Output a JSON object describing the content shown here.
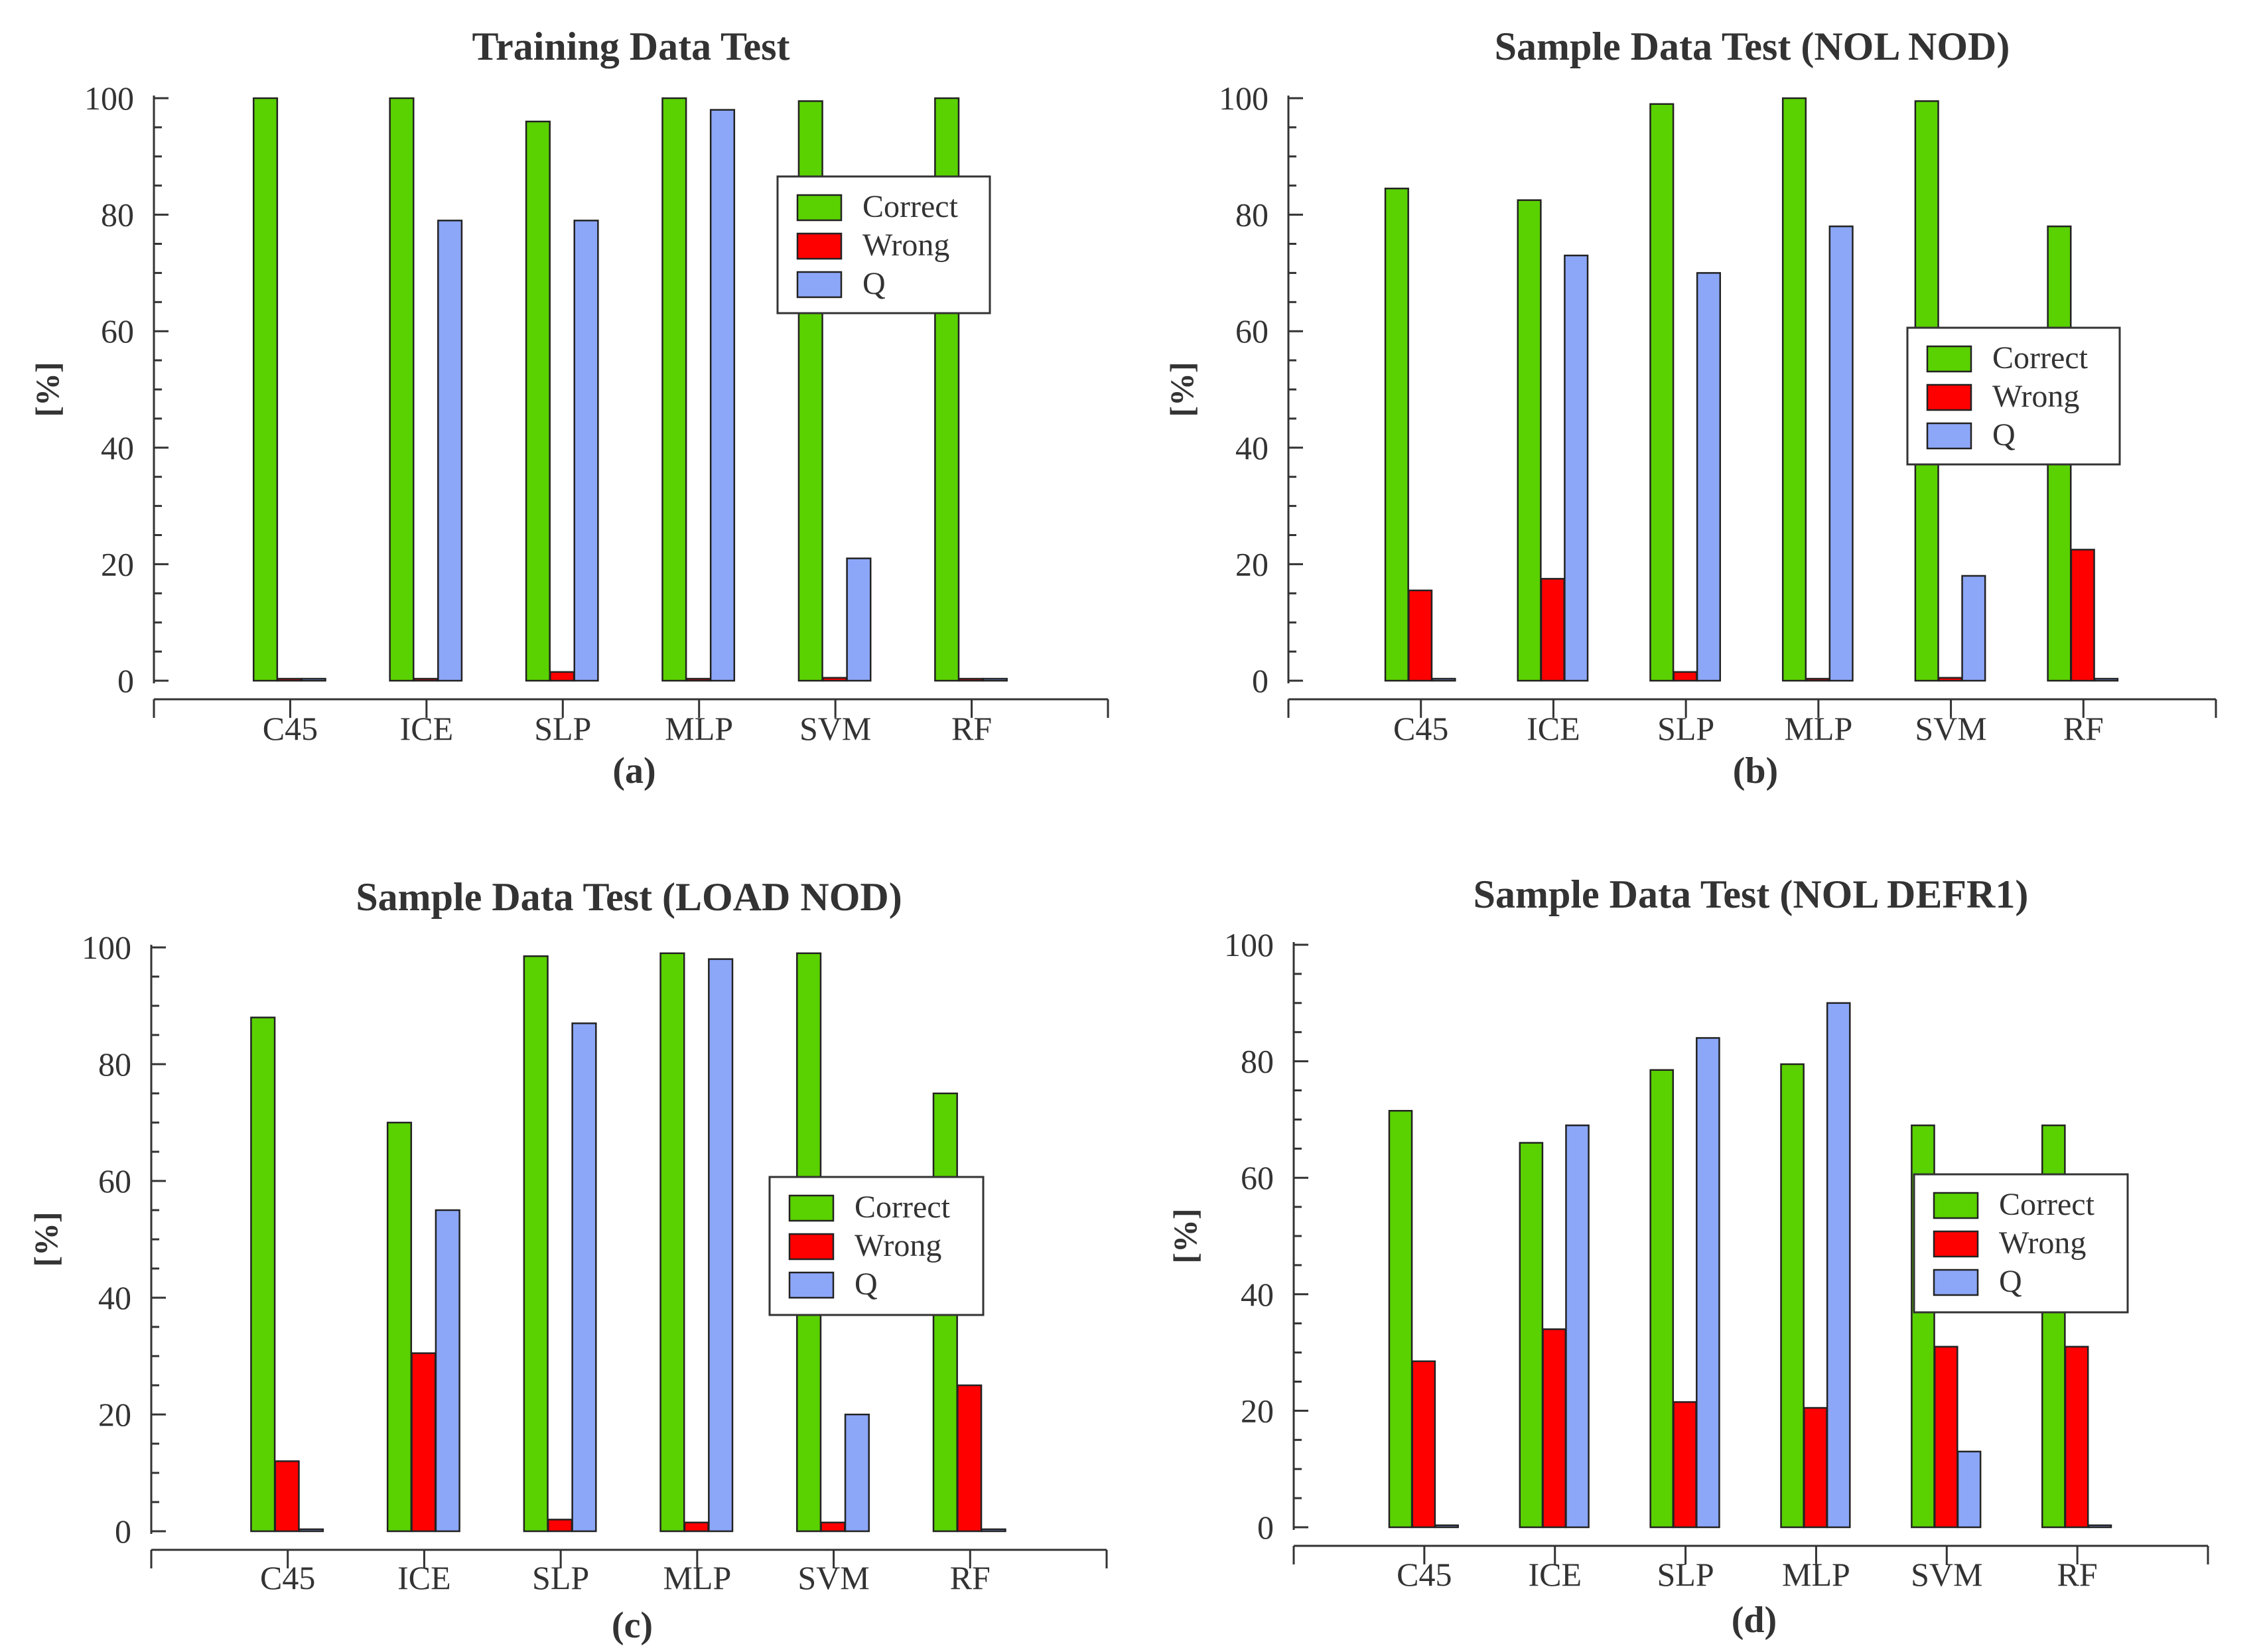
{
  "chart_data": [
    {
      "type": "bar",
      "title": "Training Data Test",
      "subtitle": "(a)",
      "ylabel": "[%]",
      "xlabel": "",
      "ylim": [
        0,
        100
      ],
      "yticks": [
        0,
        20,
        40,
        60,
        80,
        100
      ],
      "categories": [
        "C45",
        "ICE",
        "SLP",
        "MLP",
        "SVM",
        "RF"
      ],
      "legend_position": "top-right",
      "series": [
        {
          "name": "Correct",
          "color": "#5ad100",
          "values": [
            100,
            100,
            96,
            100,
            99.5,
            100
          ]
        },
        {
          "name": "Wrong",
          "color": "#ff0000",
          "values": [
            0,
            0,
            1.5,
            0,
            0.5,
            0
          ]
        },
        {
          "name": "Q",
          "color": "#8ca7f8",
          "values": [
            0,
            79,
            79,
            98,
            21,
            0
          ]
        }
      ]
    },
    {
      "type": "bar",
      "title": "Sample Data Test (NOL NOD)",
      "subtitle": "(b)",
      "ylabel": "[%]",
      "xlabel": "",
      "ylim": [
        0,
        100
      ],
      "yticks": [
        0,
        20,
        40,
        60,
        80,
        100
      ],
      "categories": [
        "C45",
        "ICE",
        "SLP",
        "MLP",
        "SVM",
        "RF"
      ],
      "legend_position": "center-right",
      "series": [
        {
          "name": "Correct",
          "color": "#5ad100",
          "values": [
            84.5,
            82.5,
            99,
            100,
            99.5,
            78
          ]
        },
        {
          "name": "Wrong",
          "color": "#ff0000",
          "values": [
            15.5,
            17.5,
            1.5,
            0,
            0.5,
            22.5
          ]
        },
        {
          "name": "Q",
          "color": "#8ca7f8",
          "values": [
            0,
            73,
            70,
            78,
            18,
            0
          ]
        }
      ]
    },
    {
      "type": "bar",
      "title": "Sample Data Test (LOAD NOD)",
      "subtitle": "(c)",
      "ylabel": "[%]",
      "xlabel": "",
      "ylim": [
        0,
        100
      ],
      "yticks": [
        0,
        20,
        40,
        60,
        80,
        100
      ],
      "categories": [
        "C45",
        "ICE",
        "SLP",
        "MLP",
        "SVM",
        "RF"
      ],
      "legend_position": "center-right",
      "series": [
        {
          "name": "Correct",
          "color": "#5ad100",
          "values": [
            88,
            70,
            98.5,
            99,
            99,
            75
          ]
        },
        {
          "name": "Wrong",
          "color": "#ff0000",
          "values": [
            12,
            30.5,
            2,
            1.5,
            1.5,
            25
          ]
        },
        {
          "name": "Q",
          "color": "#8ca7f8",
          "values": [
            0,
            55,
            87,
            98,
            20,
            0
          ]
        }
      ]
    },
    {
      "type": "bar",
      "title": "Sample Data Test (NOL DEFR1)",
      "subtitle": "(d)",
      "ylabel": "[%]",
      "xlabel": "",
      "ylim": [
        0,
        100
      ],
      "yticks": [
        0,
        20,
        40,
        60,
        80,
        100
      ],
      "categories": [
        "C45",
        "ICE",
        "SLP",
        "MLP",
        "SVM",
        "RF"
      ],
      "legend_position": "center-right",
      "series": [
        {
          "name": "Correct",
          "color": "#5ad100",
          "values": [
            71.5,
            66,
            78.5,
            79.5,
            69,
            69
          ]
        },
        {
          "name": "Wrong",
          "color": "#ff0000",
          "values": [
            28.5,
            34,
            21.5,
            20.5,
            31,
            31
          ]
        },
        {
          "name": "Q",
          "color": "#8ca7f8",
          "values": [
            0,
            69,
            84,
            90,
            13,
            0
          ]
        }
      ]
    }
  ]
}
